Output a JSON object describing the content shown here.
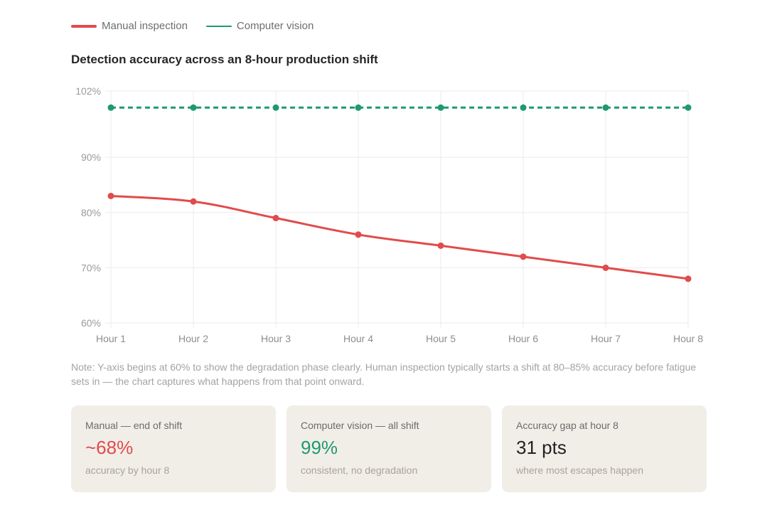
{
  "legend": [
    {
      "label": "Manual inspection",
      "color": "#e14b4b"
    },
    {
      "label": "Computer vision",
      "color": "#1f9a6e"
    }
  ],
  "chart_title": "Detection accuracy across an 8-hour production shift",
  "chart_data": {
    "type": "line",
    "title": "Detection accuracy across an 8-hour production shift",
    "categories": [
      "Hour 1",
      "Hour 2",
      "Hour 3",
      "Hour 4",
      "Hour 5",
      "Hour 6",
      "Hour 7",
      "Hour 8"
    ],
    "series": [
      {
        "name": "Manual inspection",
        "values": [
          83,
          82,
          79,
          76,
          74,
          72,
          70,
          68
        ],
        "color": "#e14b4b",
        "style": "solid"
      },
      {
        "name": "Computer vision",
        "values": [
          99,
          99,
          99,
          99,
          99,
          99,
          99,
          99
        ],
        "color": "#1f9a6e",
        "style": "dashed"
      }
    ],
    "ylim": [
      60,
      102
    ],
    "yticks": [
      60,
      70,
      80,
      90,
      102
    ],
    "ytick_labels": [
      "60%",
      "70%",
      "80%",
      "90%",
      "102%"
    ],
    "xlabel": "",
    "ylabel": "",
    "grid": true,
    "legend_position": "top-left"
  },
  "note": "Note: Y-axis begins at 60% to show the degradation phase clearly. Human inspection typically starts a shift at 80–85% accuracy before fatigue sets in — the chart captures what happens from that point onward.",
  "cards": [
    {
      "label": "Manual — end of shift",
      "value": "~68%",
      "sub": "accuracy by hour 8",
      "color": "#e14b4b"
    },
    {
      "label": "Computer vision — all shift",
      "value": "99%",
      "sub": "consistent, no degradation",
      "color": "#1f9a6e"
    },
    {
      "label": "Accuracy gap at hour 8",
      "value": "31 pts",
      "sub": "where most escapes happen",
      "color": "#222222"
    }
  ]
}
